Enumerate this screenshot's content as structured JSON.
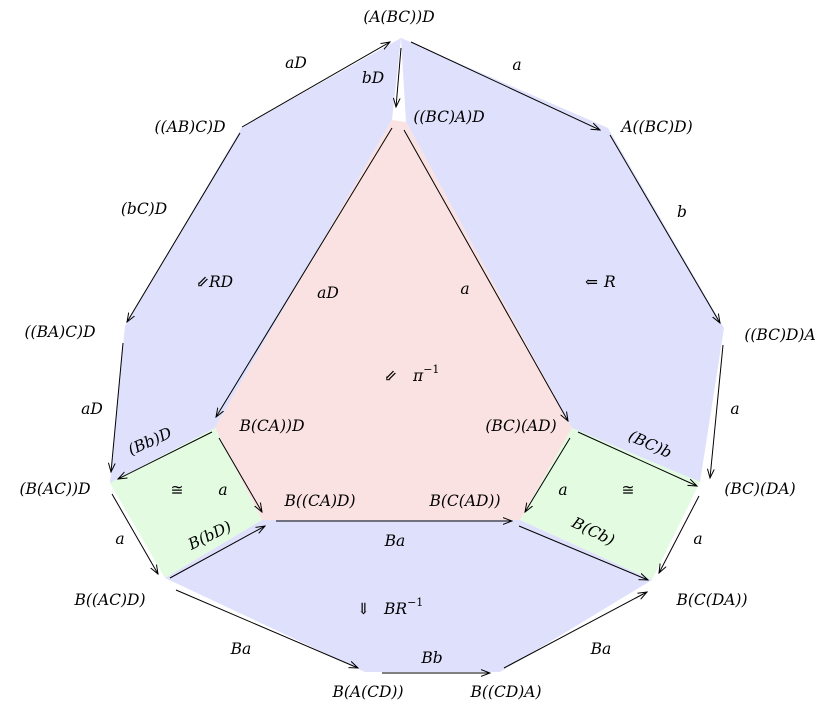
{
  "colors": {
    "blue_region": "#dfe0fb",
    "pink_region": "#fbe2e2",
    "green_region": "#e2fbe1",
    "arrow": "#000000"
  },
  "objects": [
    {
      "id": "top",
      "label": "(A(BC))D"
    },
    {
      "id": "abcd_l",
      "label": "((AB)C)D"
    },
    {
      "id": "inner_top",
      "label": "((BC)A)D"
    },
    {
      "id": "abcd_r",
      "label": "A((BC)D)"
    },
    {
      "id": "bacd",
      "label": "((BA)C)D"
    },
    {
      "id": "bcda_r",
      "label": "((BC)D)A"
    },
    {
      "id": "bcad_in",
      "label": "B(CA))D"
    },
    {
      "id": "bcad_r",
      "label": "(BC)(AD)"
    },
    {
      "id": "bacd2",
      "label": "(B(AC))D"
    },
    {
      "id": "bcda_r2",
      "label": "(BC)(DA)"
    },
    {
      "id": "b_caD",
      "label": "B((CA)D)"
    },
    {
      "id": "b_cAD",
      "label": "B(C(AD))"
    },
    {
      "id": "b_acd",
      "label": "B((AC)D)"
    },
    {
      "id": "b_cda",
      "label": "B(C(DA))"
    },
    {
      "id": "b_a_cd",
      "label": "B(A(CD))"
    },
    {
      "id": "b_cd_a",
      "label": "B((CD)A)"
    }
  ],
  "morphisms": [
    {
      "id": "m_aD_top",
      "label": "aD"
    },
    {
      "id": "m_bD",
      "label": "bD"
    },
    {
      "id": "m_a_top",
      "label": "a"
    },
    {
      "id": "m_bC_D",
      "label": "(bC)D"
    },
    {
      "id": "m_b_right",
      "label": "b"
    },
    {
      "id": "m_aD_inner",
      "label": "aD"
    },
    {
      "id": "m_a_inner",
      "label": "a"
    },
    {
      "id": "m_aD_left",
      "label": "aD"
    },
    {
      "id": "m_a_right",
      "label": "a"
    },
    {
      "id": "m_Bb_D",
      "label": "(Bb)D"
    },
    {
      "id": "m_BC_b",
      "label": "(BC)b"
    },
    {
      "id": "m_a_lsq",
      "label": "a"
    },
    {
      "id": "m_a_rsq",
      "label": "a"
    },
    {
      "id": "m_a_left_low",
      "label": "a"
    },
    {
      "id": "m_a_right_low",
      "label": "a"
    },
    {
      "id": "m_B_bD",
      "label": "B(bD)"
    },
    {
      "id": "m_B_Cb",
      "label": "B(Cb)"
    },
    {
      "id": "m_Ba_mid",
      "label": "Ba"
    },
    {
      "id": "m_Ba_left",
      "label": "Ba"
    },
    {
      "id": "m_Ba_right",
      "label": "Ba"
    },
    {
      "id": "m_Bb_bottom",
      "label": "Bb"
    }
  ],
  "cells": [
    {
      "id": "cell_RD",
      "symbol": "⇙",
      "label": "RD"
    },
    {
      "id": "cell_R",
      "symbol": "⇐",
      "label": "R"
    },
    {
      "id": "cell_pi",
      "symbol": "⇙",
      "label": "π",
      "sup": "−1"
    },
    {
      "id": "cell_iso_left",
      "symbol": "≅"
    },
    {
      "id": "cell_iso_right",
      "symbol": "≅"
    },
    {
      "id": "cell_BR",
      "symbol": "⇓",
      "label": "BR",
      "sup": "−1"
    }
  ]
}
